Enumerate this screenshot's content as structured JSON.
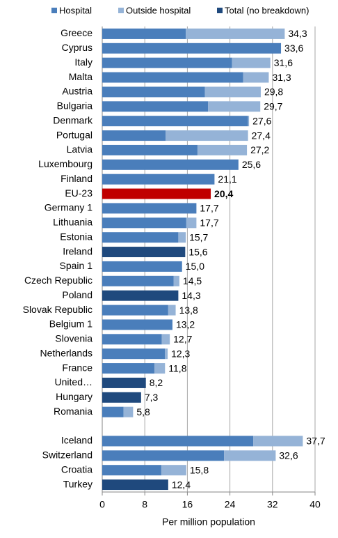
{
  "chart_data": {
    "type": "stacked-bar",
    "orientation": "horizontal",
    "x_label": "Per million population",
    "categories": [
      "Greece",
      "Cyprus",
      "Italy",
      "Malta",
      "Austria",
      "Bulgaria",
      "Denmark",
      "Portugal",
      "Latvia",
      "Luxembourg",
      "Finland",
      "EU-23",
      "Germany 1",
      "Lithuania",
      "Estonia",
      "Ireland",
      "Spain 1",
      "Czech Republic",
      "Poland",
      "Slovak Republic",
      "Belgium 1",
      "Slovenia",
      "Netherlands",
      "France",
      "United…",
      "Hungary",
      "Romania",
      null,
      "Iceland",
      "Switzerland",
      "Croatia",
      "Turkey"
    ],
    "series": [
      {
        "name": "Hospital",
        "color": "#4a7ebb",
        "values": [
          15.7,
          33.6,
          24.4,
          26.5,
          19.3,
          19.9,
          27.4,
          11.9,
          17.9,
          25.6,
          21.1,
          null,
          17.7,
          15.8,
          14.3,
          null,
          15.0,
          13.4,
          null,
          12.4,
          13.2,
          11.2,
          11.8,
          9.8,
          null,
          null,
          4.0,
          null,
          28.4,
          22.9,
          11.1,
          null
        ]
      },
      {
        "name": "Outside hospital",
        "color": "#95b3d7",
        "values": [
          18.6,
          0,
          7.2,
          4.8,
          10.5,
          9.8,
          0.2,
          15.5,
          9.3,
          0,
          0,
          null,
          0,
          1.9,
          1.4,
          null,
          0,
          1.1,
          null,
          1.4,
          0,
          1.5,
          0.5,
          2.0,
          null,
          null,
          1.8,
          null,
          9.3,
          9.7,
          4.7,
          null
        ]
      },
      {
        "name": "Total (no breakdown)",
        "color": "#1f497d",
        "values": [
          null,
          null,
          null,
          null,
          null,
          null,
          null,
          null,
          null,
          null,
          null,
          20.4,
          null,
          null,
          null,
          15.6,
          null,
          null,
          14.3,
          null,
          null,
          null,
          null,
          null,
          8.2,
          7.3,
          null,
          null,
          null,
          null,
          null,
          12.4
        ]
      }
    ],
    "totals": [
      34.3,
      33.6,
      31.6,
      31.3,
      29.8,
      29.7,
      27.6,
      27.4,
      27.2,
      25.6,
      21.1,
      20.4,
      17.7,
      17.7,
      15.7,
      15.6,
      15.0,
      14.5,
      14.3,
      13.8,
      13.2,
      12.7,
      12.3,
      11.8,
      8.2,
      7.3,
      5.8,
      null,
      37.7,
      32.6,
      15.8,
      12.4
    ],
    "total_labels": [
      "34,3",
      "33,6",
      "31,6",
      "31,3",
      "29,8",
      "29,7",
      "27,6",
      "27,4",
      "27,2",
      "25,6",
      "21,1",
      "20,4",
      "17,7",
      "17,7",
      "15,7",
      "15,6",
      "15,0",
      "14,5",
      "14,3",
      "13,8",
      "13,2",
      "12,7",
      "12,3",
      "11,8",
      "8,2",
      "7,3",
      "5,8",
      null,
      "37,7",
      "32,6",
      "15,8",
      "12,4"
    ],
    "highlight": "EU-23",
    "highlight_color": "#c00000",
    "xlim": [
      0,
      40
    ],
    "xticks": [
      0,
      8,
      16,
      24,
      32,
      40
    ],
    "grid": true
  }
}
